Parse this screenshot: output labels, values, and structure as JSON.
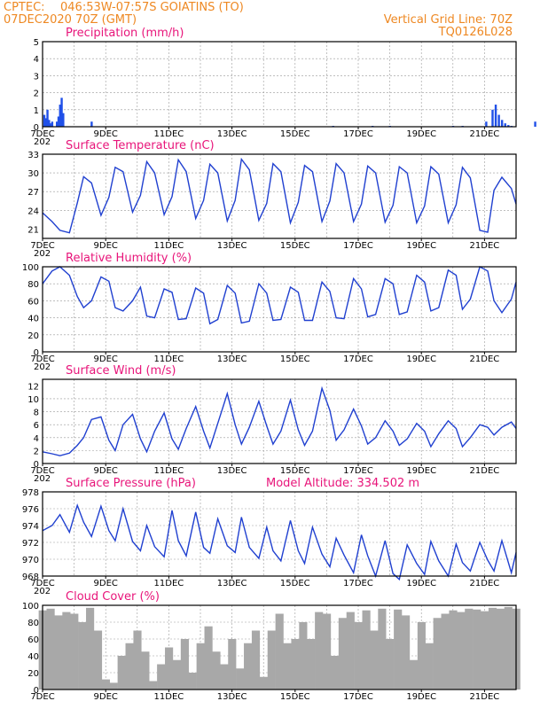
{
  "header": {
    "source": "CPTEC:",
    "location": "046:53W-07:57S   GOIATINS (TO)",
    "run": "07DEC2020 70Z (GMT)",
    "grid_note": "Vertical Grid Line: 70Z",
    "code": "TQ0126L028"
  },
  "colors": {
    "header": "#ee8822",
    "title": "#e8157a",
    "line": "#2040d0",
    "bars": "#2050e8",
    "cloud": "#a8a8a8"
  },
  "x_ticks": [
    "7DEC",
    "9DEC",
    "11DEC",
    "13DEC",
    "15DEC",
    "17DEC",
    "19DEC",
    "21DEC"
  ],
  "x_year_fragment": "202",
  "chart_data": [
    {
      "type": "bar",
      "title": "Precipitation (mm/h)",
      "ylim": [
        0,
        5
      ],
      "yticks": [
        "0",
        "1",
        "2",
        "3",
        "4",
        "5"
      ],
      "x_unit": "days since 7DEC",
      "grid": true,
      "x": [
        0.05,
        0.1,
        0.15,
        0.2,
        0.25,
        0.3,
        0.45,
        0.5,
        0.55,
        0.6,
        0.65,
        1.55,
        9.2,
        10.45,
        11.0,
        13.0,
        13.3,
        14.05,
        14.25,
        14.35,
        14.45,
        14.55,
        14.65,
        14.75,
        14.85,
        15.6
      ],
      "values": [
        0.7,
        0.5,
        1.0,
        0.4,
        0.2,
        0.3,
        0.3,
        0.6,
        1.3,
        1.7,
        0.8,
        0.3,
        0.05,
        0.05,
        0.05,
        0.05,
        0.05,
        0.3,
        1.0,
        1.3,
        0.7,
        0.4,
        0.2,
        0.1,
        0.05,
        0.3
      ]
    },
    {
      "type": "line",
      "title": "Surface Temperature (nC)",
      "ylim": [
        19.5,
        33
      ],
      "yticks": [
        "21",
        "24",
        "27",
        "30",
        "33"
      ],
      "x": [
        0,
        0.3,
        0.55,
        0.85,
        1.1,
        1.3,
        1.55,
        1.85,
        2.1,
        2.3,
        2.55,
        2.85,
        3.1,
        3.3,
        3.55,
        3.85,
        4.1,
        4.3,
        4.55,
        4.85,
        5.1,
        5.3,
        5.55,
        5.85,
        6.1,
        6.3,
        6.55,
        6.85,
        7.1,
        7.3,
        7.55,
        7.85,
        8.1,
        8.3,
        8.55,
        8.85,
        9.1,
        9.3,
        9.55,
        9.85,
        10.1,
        10.3,
        10.55,
        10.85,
        11.1,
        11.3,
        11.55,
        11.85,
        12.1,
        12.3,
        12.55,
        12.85,
        13.1,
        13.3,
        13.55,
        13.85,
        14.1,
        14.3,
        14.55,
        14.85,
        15.0
      ],
      "values": [
        23.6,
        22.2,
        20.8,
        20.4,
        25.2,
        29.4,
        28.4,
        23.2,
        26.1,
        30.9,
        30.2,
        23.7,
        26.4,
        31.8,
        30.0,
        23.3,
        26.2,
        32.1,
        30.2,
        22.7,
        25.6,
        31.4,
        30.0,
        22.3,
        25.6,
        32.2,
        30.5,
        22.4,
        25.1,
        31.5,
        30.2,
        22.0,
        25.3,
        31.2,
        30.2,
        22.2,
        25.5,
        31.5,
        30.0,
        22.2,
        25.0,
        31.1,
        30.0,
        22.1,
        24.8,
        31.0,
        30.0,
        22.0,
        24.7,
        31.0,
        29.8,
        22.0,
        24.9,
        30.9,
        29.2,
        20.8,
        20.5,
        27.2,
        29.3,
        27.5,
        25.0
      ]
    },
    {
      "type": "line",
      "title": "Relative Humidity (%)",
      "ylim": [
        0,
        100
      ],
      "yticks": [
        "0",
        "20",
        "40",
        "60",
        "80",
        "100"
      ],
      "x": [
        0,
        0.3,
        0.55,
        0.85,
        1.1,
        1.3,
        1.55,
        1.85,
        2.1,
        2.3,
        2.55,
        2.85,
        3.1,
        3.3,
        3.55,
        3.85,
        4.1,
        4.3,
        4.55,
        4.85,
        5.1,
        5.3,
        5.55,
        5.85,
        6.1,
        6.3,
        6.55,
        6.85,
        7.1,
        7.3,
        7.55,
        7.85,
        8.1,
        8.3,
        8.55,
        8.85,
        9.1,
        9.3,
        9.55,
        9.85,
        10.1,
        10.3,
        10.55,
        10.85,
        11.1,
        11.3,
        11.55,
        11.85,
        12.1,
        12.3,
        12.55,
        12.85,
        13.1,
        13.3,
        13.55,
        13.85,
        14.1,
        14.3,
        14.55,
        14.85,
        15.0
      ],
      "values": [
        80,
        95,
        100,
        90,
        65,
        52,
        60,
        88,
        83,
        52,
        48,
        60,
        76,
        42,
        40,
        74,
        70,
        38,
        39,
        75,
        69,
        33,
        38,
        78,
        69,
        34,
        36,
        80,
        69,
        37,
        38,
        76,
        70,
        37,
        37,
        82,
        71,
        40,
        39,
        86,
        74,
        41,
        44,
        86,
        80,
        44,
        47,
        90,
        82,
        48,
        52,
        96,
        90,
        50,
        62,
        100,
        95,
        60,
        46,
        62,
        82
      ]
    },
    {
      "type": "line",
      "title": "Surface Wind (m/s)",
      "ylim": [
        0,
        13
      ],
      "yticks": [
        "0",
        "2",
        "4",
        "6",
        "8",
        "10",
        "12"
      ],
      "x": [
        0,
        0.3,
        0.55,
        0.85,
        1.1,
        1.3,
        1.55,
        1.85,
        2.1,
        2.3,
        2.55,
        2.85,
        3.1,
        3.3,
        3.55,
        3.85,
        4.1,
        4.3,
        4.55,
        4.85,
        5.1,
        5.3,
        5.55,
        5.85,
        6.1,
        6.3,
        6.55,
        6.85,
        7.1,
        7.3,
        7.55,
        7.85,
        8.1,
        8.3,
        8.55,
        8.85,
        9.1,
        9.3,
        9.55,
        9.85,
        10.1,
        10.3,
        10.55,
        10.85,
        11.1,
        11.3,
        11.55,
        11.85,
        12.1,
        12.3,
        12.55,
        12.85,
        13.1,
        13.3,
        13.55,
        13.85,
        14.1,
        14.3,
        14.55,
        14.85,
        15.0
      ],
      "values": [
        1.8,
        1.5,
        1.2,
        1.6,
        2.8,
        4.0,
        6.8,
        7.2,
        3.6,
        2.0,
        6.0,
        7.6,
        3.8,
        1.8,
        5.0,
        7.8,
        3.8,
        2.2,
        5.4,
        8.8,
        5.0,
        2.4,
        6.2,
        10.8,
        6.0,
        3.0,
        5.6,
        9.6,
        5.8,
        3.0,
        5.0,
        9.8,
        5.2,
        2.8,
        5.0,
        11.6,
        8.2,
        3.6,
        5.2,
        8.4,
        5.8,
        3.0,
        4.0,
        6.6,
        5.0,
        2.8,
        3.8,
        6.2,
        5.0,
        2.6,
        4.6,
        6.6,
        5.4,
        2.6,
        4.0,
        6.0,
        5.6,
        4.4,
        5.6,
        6.4,
        5.4
      ]
    },
    {
      "type": "line",
      "title": "Surface Pressure (hPa)",
      "subtitle": "Model Altitude: 334.502 m",
      "ylim": [
        968,
        978
      ],
      "yticks": [
        "968",
        "970",
        "972",
        "974",
        "976",
        "978"
      ],
      "x": [
        0,
        0.3,
        0.55,
        0.85,
        1.1,
        1.3,
        1.55,
        1.85,
        2.1,
        2.3,
        2.55,
        2.85,
        3.1,
        3.3,
        3.55,
        3.85,
        4.1,
        4.3,
        4.55,
        4.85,
        5.1,
        5.3,
        5.55,
        5.85,
        6.1,
        6.3,
        6.55,
        6.85,
        7.1,
        7.3,
        7.55,
        7.85,
        8.1,
        8.3,
        8.55,
        8.85,
        9.1,
        9.3,
        9.55,
        9.85,
        10.1,
        10.3,
        10.55,
        10.85,
        11.1,
        11.3,
        11.55,
        11.85,
        12.1,
        12.3,
        12.55,
        12.85,
        13.1,
        13.3,
        13.55,
        13.85,
        14.1,
        14.3,
        14.55,
        14.85,
        15.0
      ],
      "values": [
        973.4,
        974.0,
        975.3,
        973.2,
        976.4,
        974.4,
        972.7,
        976.3,
        973.4,
        972.2,
        976.0,
        972.1,
        971.0,
        974.0,
        971.5,
        970.3,
        975.8,
        972.2,
        970.4,
        975.6,
        971.4,
        970.7,
        974.8,
        971.6,
        970.8,
        975.0,
        971.4,
        970.1,
        973.8,
        971.0,
        969.8,
        974.6,
        971.0,
        969.5,
        973.8,
        970.6,
        969.1,
        972.5,
        970.5,
        968.4,
        972.9,
        970.4,
        968.0,
        972.2,
        968.3,
        967.6,
        971.7,
        969.5,
        968.2,
        972.1,
        969.8,
        968.0,
        971.8,
        969.6,
        968.6,
        972.0,
        969.9,
        968.6,
        972.2,
        968.4,
        970.8
      ]
    },
    {
      "type": "area",
      "title": "Cloud Cover (%)",
      "ylim": [
        0,
        100
      ],
      "yticks": [
        "0",
        "20",
        "40",
        "60",
        "80",
        "100"
      ],
      "x": [
        0,
        0.25,
        0.5,
        0.75,
        1.0,
        1.25,
        1.5,
        1.75,
        2.0,
        2.25,
        2.5,
        2.75,
        3.0,
        3.25,
        3.5,
        3.75,
        4.0,
        4.25,
        4.5,
        4.75,
        5.0,
        5.25,
        5.5,
        5.75,
        6.0,
        6.25,
        6.5,
        6.75,
        7.0,
        7.25,
        7.5,
        7.75,
        8.0,
        8.25,
        8.5,
        8.75,
        9.0,
        9.25,
        9.5,
        9.75,
        10.0,
        10.25,
        10.5,
        10.75,
        11.0,
        11.25,
        11.5,
        11.75,
        12.0,
        12.25,
        12.5,
        12.75,
        13.0,
        13.25,
        13.5,
        13.75,
        14.0,
        14.25,
        14.5,
        14.75,
        15.0
      ],
      "values": [
        94,
        96,
        88,
        92,
        90,
        80,
        97,
        70,
        12,
        8,
        40,
        55,
        70,
        45,
        10,
        30,
        50,
        35,
        60,
        20,
        55,
        75,
        45,
        30,
        60,
        25,
        55,
        70,
        15,
        70,
        90,
        55,
        60,
        80,
        60,
        92,
        90,
        40,
        85,
        92,
        80,
        94,
        70,
        96,
        60,
        95,
        88,
        35,
        80,
        55,
        85,
        90,
        94,
        92,
        96,
        95,
        93,
        97,
        96,
        98,
        96
      ]
    }
  ]
}
